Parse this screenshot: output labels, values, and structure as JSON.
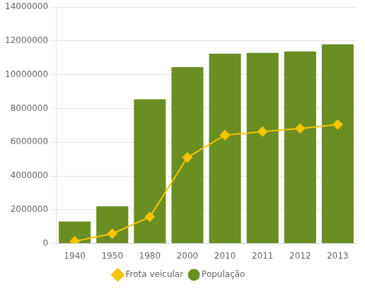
{
  "chart_data": {
    "type": "bar",
    "categories": [
      "1940",
      "1950",
      "1980",
      "2000",
      "2010",
      "2011",
      "2012",
      "2013"
    ],
    "series": [
      {
        "name": "População",
        "type": "bar",
        "color": "#6b8e23",
        "values": [
          1300000,
          2200000,
          8550000,
          10450000,
          11250000,
          11300000,
          11380000,
          11800000
        ]
      },
      {
        "name": "Frota veicular",
        "type": "line",
        "color": "#f5c400",
        "marker": "diamond",
        "values": [
          130000,
          580000,
          1580000,
          5100000,
          6420000,
          6630000,
          6820000,
          7050000
        ]
      }
    ],
    "ylim": [
      0,
      14000000
    ],
    "yticks": [
      0,
      2000000,
      4000000,
      6000000,
      8000000,
      10000000,
      12000000,
      14000000
    ],
    "grid": true,
    "legend": "bottom"
  }
}
